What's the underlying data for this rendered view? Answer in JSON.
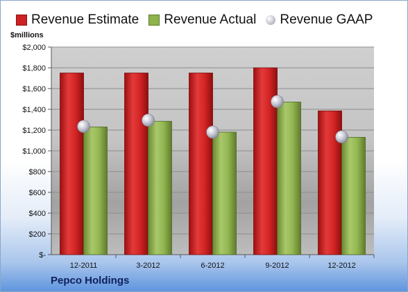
{
  "legend": [
    {
      "name": "Revenue Estimate",
      "color": "#cc2222",
      "shape": "square"
    },
    {
      "name": "Revenue Actual",
      "color": "#8db34a",
      "shape": "square"
    },
    {
      "name": "Revenue GAAP",
      "color": "#c8c8d4",
      "shape": "circle"
    }
  ],
  "unit_label": "$millions",
  "company": "Pepco Holdings",
  "chart_data": {
    "type": "bar",
    "categories": [
      "12-2011",
      "3-2012",
      "6-2012",
      "9-2012",
      "12-2012"
    ],
    "series": [
      {
        "name": "Revenue Estimate",
        "values": [
          1750,
          1750,
          1750,
          1800,
          1385
        ],
        "color": "#cc2222"
      },
      {
        "name": "Revenue Actual",
        "values": [
          1230,
          1285,
          1180,
          1470,
          1130
        ],
        "color": "#8db34a"
      },
      {
        "name": "Revenue GAAP",
        "type": "scatter",
        "values": [
          1235,
          1295,
          1180,
          1475,
          1135
        ],
        "color": "#c8c8d4"
      }
    ],
    "ylim": [
      0,
      2000
    ],
    "yticks": [
      0,
      200,
      400,
      600,
      800,
      1000,
      1200,
      1400,
      1600,
      1800,
      2000
    ],
    "ytick_labels": [
      "$-",
      "$200",
      "$400",
      "$600",
      "$800",
      "$1,000",
      "$1,200",
      "$1,400",
      "$1,600",
      "$1,800",
      "$2,000"
    ],
    "grid": true,
    "legend_position": "top"
  }
}
